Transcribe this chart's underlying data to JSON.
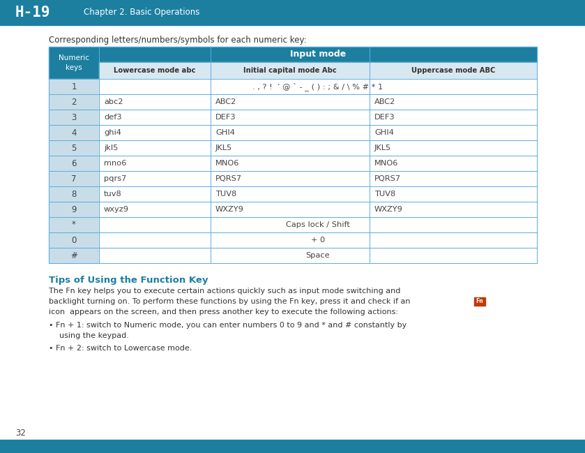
{
  "header_bg": "#1c7fa0",
  "header_text_color": "#ffffff",
  "page_bg": "#ffffff",
  "title_text": "H-19",
  "chapter_text": "Chapter 2. Basic Operations",
  "section_title": "Corresponding letters/numbers/symbols for each numeric key:",
  "tips_title": "Tips of Using the Function Key",
  "tips_color": "#1c7fa0",
  "table_input_mode": "Input mode",
  "table_data": [
    [
      "1",
      ". , ? !  ’ @ ` - _ ( ) : ; & / \\ % # * 1",
      "",
      ""
    ],
    [
      "2",
      "abc2",
      "ABC2",
      "ABC2"
    ],
    [
      "3",
      "def3",
      "DEF3",
      "DEF3"
    ],
    [
      "4",
      "ghi4",
      "GHI4",
      "GHI4"
    ],
    [
      "5",
      "jkl5",
      "JKL5",
      "JKL5"
    ],
    [
      "6",
      "mno6",
      "MNO6",
      "MNO6"
    ],
    [
      "7",
      "pqrs7",
      "PQRS7",
      "PQRS7"
    ],
    [
      "8",
      "tuv8",
      "TUV8",
      "TUV8"
    ],
    [
      "9",
      "wxyz9",
      "WXZY9",
      "WXZY9"
    ],
    [
      "*",
      "Caps lock / Shift",
      "",
      ""
    ],
    [
      "0",
      "+ 0",
      "",
      ""
    ],
    [
      "#",
      "Space",
      "",
      ""
    ]
  ],
  "page_number": "32",
  "footer_bg": "#1c7fa0",
  "table_border": "#5aade0",
  "cell_bg_key": "#c8dde8",
  "cell_bg_white": "#ffffff",
  "fn_icon_color": "#c0390a"
}
